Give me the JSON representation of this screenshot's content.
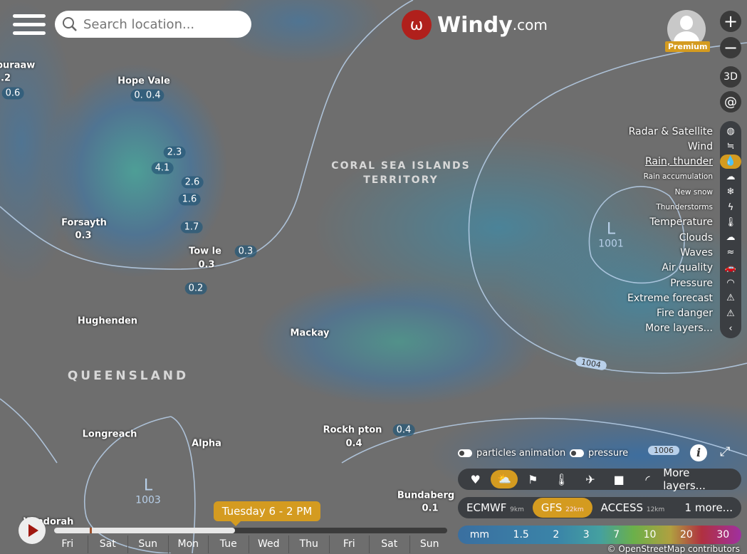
{
  "header": {
    "search_placeholder": "Search location...",
    "logo_text": "Windy",
    "logo_suffix": ".com",
    "premium_badge": "Premium"
  },
  "controls": {
    "zoom_in": "+",
    "zoom_out": "−",
    "three_d": "3D",
    "hurricane_icon": "hurricane-icon"
  },
  "map": {
    "places": [
      {
        "name": "puraaw",
        "value": ".2"
      },
      {
        "name": "",
        "value": "0.6"
      },
      {
        "name": "Hope Vale",
        "value": "0. 0.4"
      },
      {
        "name": "",
        "value": "2.3"
      },
      {
        "name": "",
        "value": "4.1"
      },
      {
        "name": "",
        "value": "2.6"
      },
      {
        "name": "",
        "value": "1.6"
      },
      {
        "name": "",
        "value": "1.7"
      },
      {
        "name": "Forsayth",
        "value": "0.3"
      },
      {
        "name": "Tow    le",
        "value": "0.3"
      },
      {
        "name": "",
        "value": "0.3"
      },
      {
        "name": "",
        "value": "0.2"
      },
      {
        "name": "Hughenden"
      },
      {
        "name": "Mackay"
      },
      {
        "name": "Longreach"
      },
      {
        "name": "Alpha"
      },
      {
        "name": "Rockh    pton",
        "value": "0.4"
      },
      {
        "name": "",
        "value": "0.4"
      },
      {
        "name": "Bundaberg",
        "value": "0.1"
      },
      {
        "name": "Windorah"
      }
    ],
    "regions": [
      "QUEENSLAND",
      "CORAL SEA ISLANDS",
      "TERRITORY"
    ],
    "lows": [
      {
        "letter": "L",
        "pressure": "1003"
      },
      {
        "letter": "L",
        "pressure": "1001"
      }
    ],
    "isobars": [
      "1004",
      "1006"
    ]
  },
  "layers": [
    {
      "label": "Radar & Satellite",
      "icon": "globe-icon",
      "glyph": "◍"
    },
    {
      "label": "Wind",
      "icon": "wind-icon",
      "glyph": "≒"
    },
    {
      "label": "Rain, thunder",
      "icon": "raindrop-icon",
      "glyph": "💧",
      "active": true
    },
    {
      "label": "Rain accumulation",
      "icon": "rain-cloud-icon",
      "glyph": "☁"
    },
    {
      "label": "New snow",
      "icon": "snowflake-icon",
      "glyph": "❄"
    },
    {
      "label": "Thunderstorms",
      "icon": "thunderstorm-icon",
      "glyph": "ϟ"
    },
    {
      "label": "Temperature",
      "icon": "thermometer-icon",
      "glyph": "🌡"
    },
    {
      "label": "Clouds",
      "icon": "cloud-icon",
      "glyph": "☁"
    },
    {
      "label": "Waves",
      "icon": "waves-icon",
      "glyph": "≈"
    },
    {
      "label": "Air quality",
      "icon": "car-icon",
      "glyph": "🚗"
    },
    {
      "label": "Pressure",
      "icon": "gauge-icon",
      "glyph": "◠"
    },
    {
      "label": "Extreme forecast",
      "icon": "warning-icon",
      "glyph": "⚠"
    },
    {
      "label": "Fire danger",
      "icon": "fire-warning-icon",
      "glyph": "⚠"
    },
    {
      "label": "More layers...",
      "icon": "chevron-left-icon",
      "glyph": "‹"
    }
  ],
  "toggles": {
    "particles": "particles animation",
    "pressure": "pressure"
  },
  "quick_bar": {
    "items": [
      {
        "icon": "heart-icon",
        "glyph": "♥"
      },
      {
        "icon": "weather-icon",
        "glyph": "⛅",
        "active": true
      },
      {
        "icon": "windsock-icon",
        "glyph": "⚑"
      },
      {
        "icon": "thermometer-icon",
        "glyph": "🌡"
      },
      {
        "icon": "airplane-icon",
        "glyph": "✈"
      },
      {
        "icon": "webcam-icon",
        "glyph": "■"
      },
      {
        "icon": "paraglider-icon",
        "glyph": "◜"
      }
    ],
    "more": "More layers..."
  },
  "models": [
    {
      "name": "ECMWF",
      "res": "9km"
    },
    {
      "name": "GFS",
      "res": "22km",
      "active": true
    },
    {
      "name": "ACCESS",
      "res": "12km"
    },
    {
      "name": "1 more..."
    }
  ],
  "scale": {
    "unit": "mm",
    "ticks": [
      "1.5",
      "2",
      "3",
      "7",
      "10",
      "20",
      "30"
    ]
  },
  "attribution": "© OpenStreetMap contributors",
  "timeline": {
    "current": "Tuesday 6 - 2 PM",
    "progress_fraction": 0.46,
    "days": [
      "Fri",
      "Sat",
      "Sun",
      "Mon",
      "Tue",
      "Wed",
      "Thu",
      "Fri",
      "Sat",
      "Sun"
    ]
  },
  "colors": {
    "accent": "#d49b20",
    "panel": "#3b3e42",
    "logo": "#b0201c"
  }
}
